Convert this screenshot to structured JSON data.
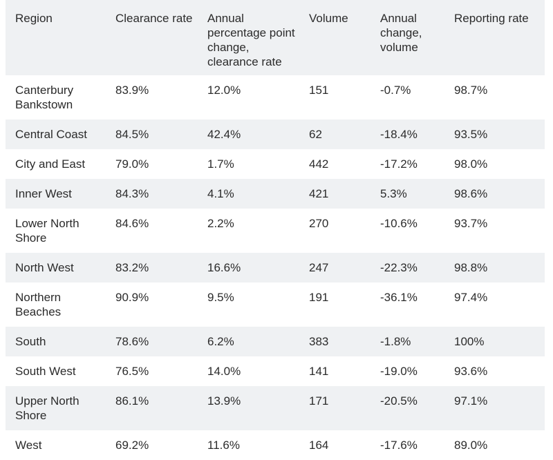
{
  "table": {
    "headers": [
      "Region",
      "Clearance rate",
      "Annual percentage point change, clearance rate",
      "Volume",
      "Annual change, volume",
      "Reporting rate"
    ],
    "rows": [
      [
        "Canterbury Bankstown",
        "83.9%",
        "12.0%",
        "151",
        "-0.7%",
        "98.7%"
      ],
      [
        "Central Coast",
        "84.5%",
        "42.4%",
        "62",
        "-18.4%",
        "93.5%"
      ],
      [
        "City and East",
        "79.0%",
        "1.7%",
        "442",
        "-17.2%",
        "98.0%"
      ],
      [
        "Inner West",
        "84.3%",
        "4.1%",
        "421",
        "5.3%",
        "98.6%"
      ],
      [
        "Lower North Shore",
        "84.6%",
        "2.2%",
        "270",
        "-10.6%",
        "93.7%"
      ],
      [
        "North West",
        "83.2%",
        "16.6%",
        "247",
        "-22.3%",
        "98.8%"
      ],
      [
        "Northern Beaches",
        "90.9%",
        "9.5%",
        "191",
        "-36.1%",
        "97.4%"
      ],
      [
        "South",
        "78.6%",
        "6.2%",
        "383",
        "-1.8%",
        "100%"
      ],
      [
        "South West",
        "76.5%",
        "14.0%",
        "141",
        "-19.0%",
        "93.6%"
      ],
      [
        "Upper North Shore",
        "86.1%",
        "13.9%",
        "171",
        "-20.5%",
        "97.1%"
      ],
      [
        "West",
        "69.2%",
        "11.6%",
        "164",
        "-17.6%",
        "89.0%"
      ]
    ]
  }
}
